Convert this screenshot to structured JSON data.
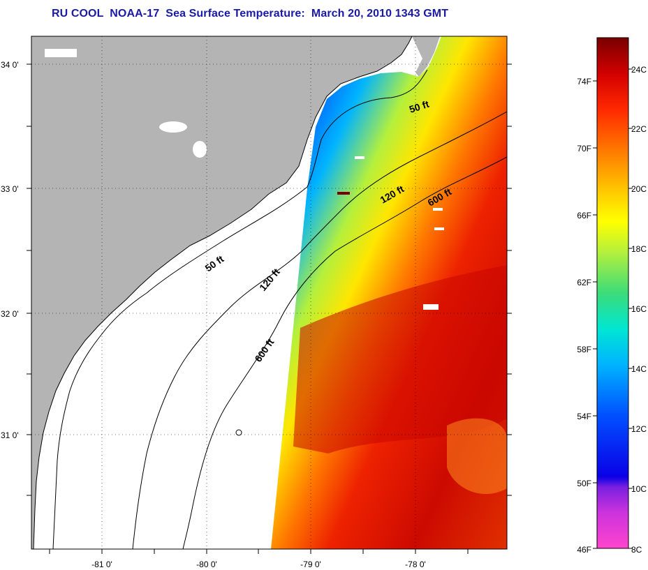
{
  "title": "RU COOL  NOAA-17  Sea Surface Temperature:  March 20, 2010 1343 GMT",
  "map": {
    "longitude_ticks": [
      "-81 0'",
      "-80 0'",
      "-79 0'",
      "-78 0'"
    ],
    "latitude_ticks": [
      "34 0'",
      "33 0'",
      "32 0'",
      "31 0'"
    ],
    "contours": [
      "50 ft",
      "120 ft",
      "600 ft",
      "50 ft",
      "120 ft",
      "600 ft"
    ],
    "colors": {
      "land": "#b4b4b4",
      "no_data": "#ffffff",
      "cold_water": "#1e3cff",
      "warm_water": "#d20000"
    }
  },
  "colorbar": {
    "fahrenheit_labels": [
      "74F",
      "70F",
      "66F",
      "62F",
      "58F",
      "54F",
      "50F",
      "46F"
    ],
    "celsius_labels": [
      "24C",
      "22C",
      "20C",
      "18C",
      "16C",
      "14C",
      "12C",
      "10C",
      "8C"
    ],
    "range_celsius": [
      8,
      25
    ],
    "colors": [
      "#ff44cc",
      "#aa22dd",
      "#0a00e6",
      "#0050ff",
      "#00b4ff",
      "#00e6d2",
      "#3cdc78",
      "#b4f03c",
      "#ffff00",
      "#ffc800",
      "#ff7800",
      "#ff2800",
      "#d20000",
      "#780000"
    ]
  }
}
